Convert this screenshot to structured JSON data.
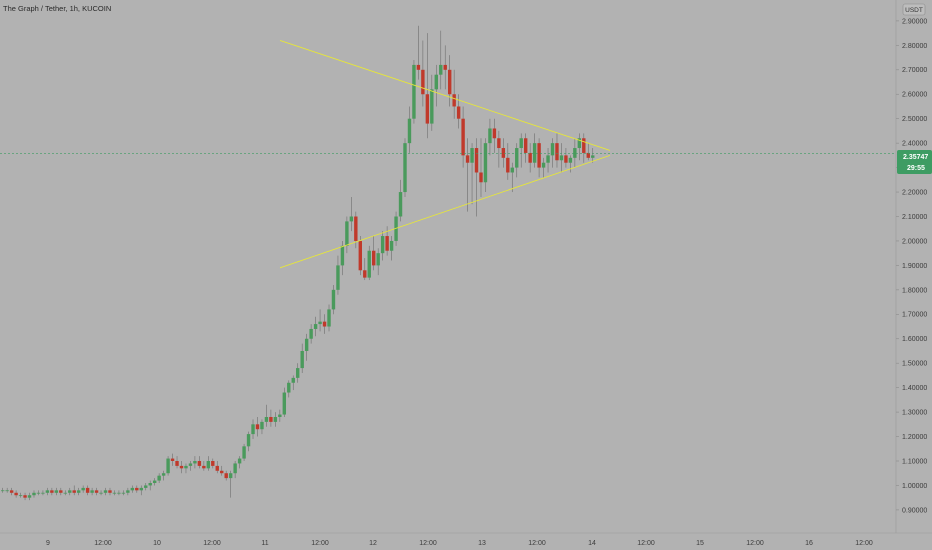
{
  "header": {
    "title": "The Graph / Tether, 1h, KUCOIN"
  },
  "currency_label": "USDT",
  "price_badge": {
    "price": "2.35747",
    "countdown": "29:55",
    "partial_label": "2"
  },
  "colors": {
    "background": "#b2b2b2",
    "up": "#4a9a5c",
    "down": "#c0392b",
    "trendline": "#e6e63a",
    "axis_text": "#3c3c3c",
    "badge": "#3e9c63"
  },
  "chart_data": {
    "type": "candlestick",
    "title": "The Graph / Tether, 1h, KUCOIN",
    "ylim": [
      0.86,
      2.95
    ],
    "y_ticks": [
      "0.90000",
      "1.00000",
      "1.10000",
      "1.20000",
      "1.30000",
      "1.40000",
      "1.50000",
      "1.60000",
      "1.70000",
      "1.80000",
      "1.90000",
      "2.00000",
      "2.10000",
      "2.20000",
      "2.30000",
      "2.40000",
      "2.50000",
      "2.60000",
      "2.70000",
      "2.80000",
      "2.90000"
    ],
    "x_ticks": [
      "9",
      "12:00",
      "10",
      "12:00",
      "11",
      "12:00",
      "12",
      "12:00",
      "13",
      "12:00",
      "14",
      "12:00",
      "15",
      "12:00",
      "16",
      "12:00"
    ],
    "last_price": 2.35747,
    "trendlines": [
      {
        "name": "upper",
        "from": {
          "bar": 0,
          "price": 2.82
        },
        "to": {
          "bar": 183,
          "price": 2.37
        }
      },
      {
        "name": "lower",
        "from": {
          "bar": 0,
          "price": 1.89
        },
        "to": {
          "bar": 183,
          "price": 2.35
        }
      }
    ],
    "candles": [
      [
        0.98,
        0.99,
        0.97,
        0.98
      ],
      [
        0.98,
        0.99,
        0.97,
        0.98
      ],
      [
        0.98,
        0.99,
        0.96,
        0.97
      ],
      [
        0.97,
        0.98,
        0.95,
        0.96
      ],
      [
        0.96,
        0.97,
        0.95,
        0.96
      ],
      [
        0.96,
        0.97,
        0.94,
        0.95
      ],
      [
        0.95,
        0.97,
        0.94,
        0.96
      ],
      [
        0.96,
        0.98,
        0.95,
        0.97
      ],
      [
        0.97,
        0.98,
        0.96,
        0.97
      ],
      [
        0.97,
        0.98,
        0.96,
        0.97
      ],
      [
        0.97,
        0.99,
        0.96,
        0.98
      ],
      [
        0.98,
        0.99,
        0.96,
        0.97
      ],
      [
        0.97,
        0.99,
        0.96,
        0.98
      ],
      [
        0.98,
        0.99,
        0.96,
        0.97
      ],
      [
        0.97,
        0.98,
        0.96,
        0.97
      ],
      [
        0.97,
        0.99,
        0.96,
        0.98
      ],
      [
        0.98,
        1.0,
        0.96,
        0.97
      ],
      [
        0.97,
        0.99,
        0.96,
        0.98
      ],
      [
        0.98,
        1.0,
        0.97,
        0.99
      ],
      [
        0.99,
        1.0,
        0.96,
        0.97
      ],
      [
        0.97,
        0.99,
        0.96,
        0.98
      ],
      [
        0.98,
        0.99,
        0.96,
        0.97
      ],
      [
        0.97,
        0.98,
        0.96,
        0.97
      ],
      [
        0.97,
        0.99,
        0.96,
        0.98
      ],
      [
        0.98,
        0.99,
        0.96,
        0.97
      ],
      [
        0.97,
        0.98,
        0.96,
        0.97
      ],
      [
        0.97,
        0.98,
        0.96,
        0.97
      ],
      [
        0.97,
        0.98,
        0.96,
        0.97
      ],
      [
        0.97,
        0.99,
        0.96,
        0.98
      ],
      [
        0.98,
        1.0,
        0.97,
        0.99
      ],
      [
        0.99,
        1.0,
        0.97,
        0.98
      ],
      [
        0.98,
        1.0,
        0.96,
        0.99
      ],
      [
        0.99,
        1.01,
        0.98,
        1.0
      ],
      [
        1.0,
        1.02,
        0.98,
        1.01
      ],
      [
        1.01,
        1.03,
        1.0,
        1.02
      ],
      [
        1.02,
        1.05,
        1.01,
        1.04
      ],
      [
        1.04,
        1.06,
        1.02,
        1.05
      ],
      [
        1.05,
        1.12,
        1.04,
        1.11
      ],
      [
        1.11,
        1.13,
        1.08,
        1.1
      ],
      [
        1.1,
        1.12,
        1.07,
        1.08
      ],
      [
        1.08,
        1.1,
        1.05,
        1.07
      ],
      [
        1.07,
        1.09,
        1.05,
        1.08
      ],
      [
        1.08,
        1.1,
        1.06,
        1.09
      ],
      [
        1.09,
        1.12,
        1.07,
        1.1
      ],
      [
        1.1,
        1.12,
        1.07,
        1.08
      ],
      [
        1.08,
        1.1,
        1.06,
        1.07
      ],
      [
        1.07,
        1.12,
        1.06,
        1.1
      ],
      [
        1.1,
        1.11,
        1.07,
        1.08
      ],
      [
        1.08,
        1.1,
        1.05,
        1.06
      ],
      [
        1.06,
        1.08,
        1.04,
        1.05
      ],
      [
        1.05,
        1.06,
        1.02,
        1.03
      ],
      [
        1.03,
        1.06,
        0.95,
        1.05
      ],
      [
        1.05,
        1.1,
        1.03,
        1.09
      ],
      [
        1.09,
        1.12,
        1.07,
        1.11
      ],
      [
        1.11,
        1.17,
        1.1,
        1.16
      ],
      [
        1.16,
        1.22,
        1.14,
        1.21
      ],
      [
        1.21,
        1.27,
        1.19,
        1.25
      ],
      [
        1.25,
        1.28,
        1.2,
        1.23
      ],
      [
        1.23,
        1.27,
        1.21,
        1.26
      ],
      [
        1.26,
        1.33,
        1.24,
        1.28
      ],
      [
        1.28,
        1.31,
        1.24,
        1.26
      ],
      [
        1.26,
        1.3,
        1.24,
        1.28
      ],
      [
        1.28,
        1.31,
        1.26,
        1.29
      ],
      [
        1.29,
        1.4,
        1.28,
        1.38
      ],
      [
        1.38,
        1.43,
        1.36,
        1.42
      ],
      [
        1.42,
        1.45,
        1.39,
        1.44
      ],
      [
        1.44,
        1.5,
        1.42,
        1.48
      ],
      [
        1.48,
        1.58,
        1.46,
        1.55
      ],
      [
        1.55,
        1.62,
        1.51,
        1.6
      ],
      [
        1.6,
        1.66,
        1.58,
        1.64
      ],
      [
        1.64,
        1.69,
        1.61,
        1.66
      ],
      [
        1.66,
        1.72,
        1.63,
        1.67
      ],
      [
        1.67,
        1.7,
        1.62,
        1.65
      ],
      [
        1.65,
        1.74,
        1.63,
        1.72
      ],
      [
        1.72,
        1.82,
        1.7,
        1.8
      ],
      [
        1.8,
        1.94,
        1.78,
        1.9
      ],
      [
        1.9,
        2.0,
        1.86,
        1.98
      ],
      [
        1.98,
        2.1,
        1.95,
        2.08
      ],
      [
        2.08,
        2.18,
        2.04,
        2.1
      ],
      [
        2.1,
        2.12,
        1.97,
        2.0
      ],
      [
        2.0,
        2.02,
        1.86,
        1.88
      ],
      [
        1.88,
        1.93,
        1.84,
        1.85
      ],
      [
        1.85,
        1.98,
        1.84,
        1.96
      ],
      [
        1.96,
        2.02,
        1.88,
        1.9
      ],
      [
        1.9,
        1.97,
        1.86,
        1.95
      ],
      [
        1.95,
        2.04,
        1.92,
        2.02
      ],
      [
        2.02,
        2.06,
        1.94,
        1.96
      ],
      [
        1.96,
        2.02,
        1.92,
        2.0
      ],
      [
        2.0,
        2.12,
        1.98,
        2.1
      ],
      [
        2.1,
        2.25,
        2.08,
        2.2
      ],
      [
        2.2,
        2.42,
        2.18,
        2.4
      ],
      [
        2.4,
        2.55,
        2.36,
        2.5
      ],
      [
        2.5,
        2.74,
        2.48,
        2.72
      ],
      [
        2.72,
        2.88,
        2.66,
        2.7
      ],
      [
        2.7,
        2.82,
        2.55,
        2.6
      ],
      [
        2.6,
        2.85,
        2.42,
        2.48
      ],
      [
        2.48,
        2.68,
        2.45,
        2.62
      ],
      [
        2.62,
        2.72,
        2.55,
        2.68
      ],
      [
        2.68,
        2.86,
        2.62,
        2.72
      ],
      [
        2.72,
        2.8,
        2.62,
        2.7
      ],
      [
        2.7,
        2.76,
        2.55,
        2.6
      ],
      [
        2.6,
        2.7,
        2.5,
        2.55
      ],
      [
        2.55,
        2.6,
        2.46,
        2.5
      ],
      [
        2.5,
        2.55,
        2.3,
        2.35
      ],
      [
        2.35,
        2.42,
        2.12,
        2.32
      ],
      [
        2.32,
        2.4,
        2.15,
        2.38
      ],
      [
        2.38,
        2.42,
        2.1,
        2.28
      ],
      [
        2.28,
        2.42,
        2.18,
        2.24
      ],
      [
        2.24,
        2.42,
        2.2,
        2.4
      ],
      [
        2.4,
        2.5,
        2.35,
        2.46
      ],
      [
        2.46,
        2.5,
        2.36,
        2.42
      ],
      [
        2.42,
        2.45,
        2.3,
        2.38
      ],
      [
        2.38,
        2.42,
        2.3,
        2.34
      ],
      [
        2.34,
        2.4,
        2.25,
        2.28
      ],
      [
        2.28,
        2.32,
        2.2,
        2.3
      ],
      [
        2.3,
        2.4,
        2.26,
        2.38
      ],
      [
        2.38,
        2.44,
        2.3,
        2.42
      ],
      [
        2.42,
        2.44,
        2.32,
        2.36
      ],
      [
        2.36,
        2.4,
        2.28,
        2.32
      ],
      [
        2.32,
        2.44,
        2.3,
        2.4
      ],
      [
        2.4,
        2.42,
        2.26,
        2.3
      ],
      [
        2.3,
        2.34,
        2.26,
        2.32
      ],
      [
        2.32,
        2.38,
        2.28,
        2.35
      ],
      [
        2.35,
        2.42,
        2.3,
        2.4
      ],
      [
        2.4,
        2.44,
        2.3,
        2.33
      ],
      [
        2.33,
        2.4,
        2.28,
        2.35
      ],
      [
        2.35,
        2.38,
        2.3,
        2.32
      ],
      [
        2.32,
        2.35,
        2.28,
        2.34
      ],
      [
        2.34,
        2.42,
        2.3,
        2.38
      ],
      [
        2.38,
        2.44,
        2.33,
        2.42
      ],
      [
        2.42,
        2.44,
        2.32,
        2.36
      ],
      [
        2.36,
        2.4,
        2.33,
        2.34
      ],
      [
        2.34,
        2.38,
        2.32,
        2.35
      ]
    ]
  }
}
